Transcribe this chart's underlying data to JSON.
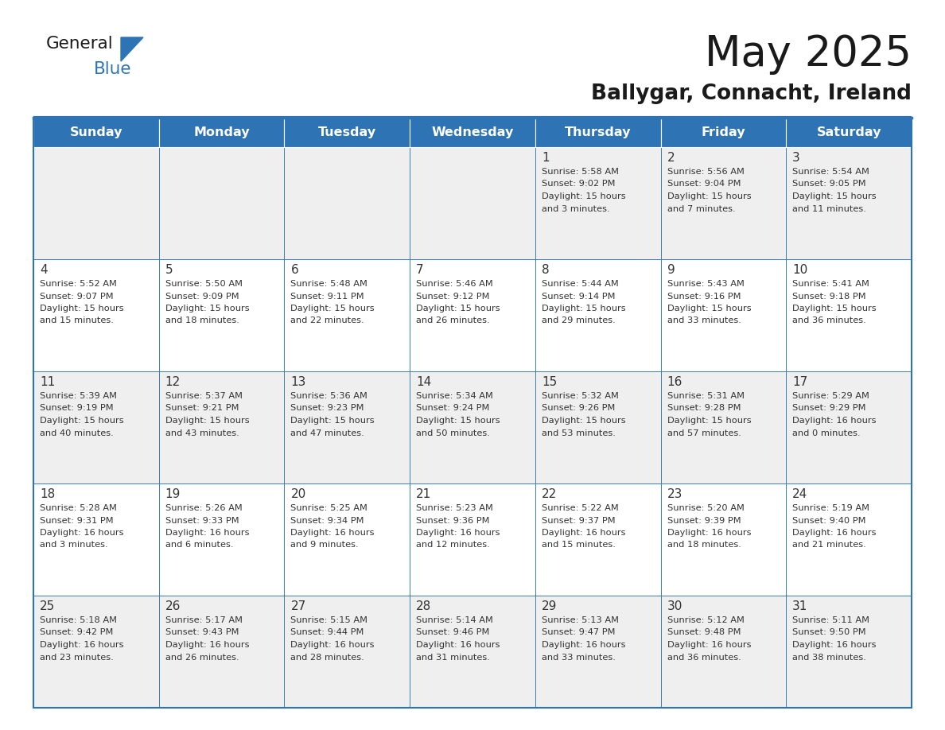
{
  "title": "May 2025",
  "subtitle": "Ballygar, Connacht, Ireland",
  "days_of_week": [
    "Sunday",
    "Monday",
    "Tuesday",
    "Wednesday",
    "Thursday",
    "Friday",
    "Saturday"
  ],
  "header_bg": "#2E74B5",
  "header_text": "#FFFFFF",
  "cell_bg_odd": "#EFEFEF",
  "cell_bg_even": "#FFFFFF",
  "border_color": "#2E74B5",
  "text_color": "#333333",
  "title_color": "#1a1a1a",
  "subtitle_color": "#1a1a1a",
  "logo_general_color": "#1a1a1a",
  "logo_blue_color": "#2E74B5",
  "logo_triangle_color": "#2E74B5",
  "calendar": [
    [
      {
        "day": null,
        "info": null
      },
      {
        "day": null,
        "info": null
      },
      {
        "day": null,
        "info": null
      },
      {
        "day": null,
        "info": null
      },
      {
        "day": 1,
        "info": "Sunrise: 5:58 AM\nSunset: 9:02 PM\nDaylight: 15 hours\nand 3 minutes."
      },
      {
        "day": 2,
        "info": "Sunrise: 5:56 AM\nSunset: 9:04 PM\nDaylight: 15 hours\nand 7 minutes."
      },
      {
        "day": 3,
        "info": "Sunrise: 5:54 AM\nSunset: 9:05 PM\nDaylight: 15 hours\nand 11 minutes."
      }
    ],
    [
      {
        "day": 4,
        "info": "Sunrise: 5:52 AM\nSunset: 9:07 PM\nDaylight: 15 hours\nand 15 minutes."
      },
      {
        "day": 5,
        "info": "Sunrise: 5:50 AM\nSunset: 9:09 PM\nDaylight: 15 hours\nand 18 minutes."
      },
      {
        "day": 6,
        "info": "Sunrise: 5:48 AM\nSunset: 9:11 PM\nDaylight: 15 hours\nand 22 minutes."
      },
      {
        "day": 7,
        "info": "Sunrise: 5:46 AM\nSunset: 9:12 PM\nDaylight: 15 hours\nand 26 minutes."
      },
      {
        "day": 8,
        "info": "Sunrise: 5:44 AM\nSunset: 9:14 PM\nDaylight: 15 hours\nand 29 minutes."
      },
      {
        "day": 9,
        "info": "Sunrise: 5:43 AM\nSunset: 9:16 PM\nDaylight: 15 hours\nand 33 minutes."
      },
      {
        "day": 10,
        "info": "Sunrise: 5:41 AM\nSunset: 9:18 PM\nDaylight: 15 hours\nand 36 minutes."
      }
    ],
    [
      {
        "day": 11,
        "info": "Sunrise: 5:39 AM\nSunset: 9:19 PM\nDaylight: 15 hours\nand 40 minutes."
      },
      {
        "day": 12,
        "info": "Sunrise: 5:37 AM\nSunset: 9:21 PM\nDaylight: 15 hours\nand 43 minutes."
      },
      {
        "day": 13,
        "info": "Sunrise: 5:36 AM\nSunset: 9:23 PM\nDaylight: 15 hours\nand 47 minutes."
      },
      {
        "day": 14,
        "info": "Sunrise: 5:34 AM\nSunset: 9:24 PM\nDaylight: 15 hours\nand 50 minutes."
      },
      {
        "day": 15,
        "info": "Sunrise: 5:32 AM\nSunset: 9:26 PM\nDaylight: 15 hours\nand 53 minutes."
      },
      {
        "day": 16,
        "info": "Sunrise: 5:31 AM\nSunset: 9:28 PM\nDaylight: 15 hours\nand 57 minutes."
      },
      {
        "day": 17,
        "info": "Sunrise: 5:29 AM\nSunset: 9:29 PM\nDaylight: 16 hours\nand 0 minutes."
      }
    ],
    [
      {
        "day": 18,
        "info": "Sunrise: 5:28 AM\nSunset: 9:31 PM\nDaylight: 16 hours\nand 3 minutes."
      },
      {
        "day": 19,
        "info": "Sunrise: 5:26 AM\nSunset: 9:33 PM\nDaylight: 16 hours\nand 6 minutes."
      },
      {
        "day": 20,
        "info": "Sunrise: 5:25 AM\nSunset: 9:34 PM\nDaylight: 16 hours\nand 9 minutes."
      },
      {
        "day": 21,
        "info": "Sunrise: 5:23 AM\nSunset: 9:36 PM\nDaylight: 16 hours\nand 12 minutes."
      },
      {
        "day": 22,
        "info": "Sunrise: 5:22 AM\nSunset: 9:37 PM\nDaylight: 16 hours\nand 15 minutes."
      },
      {
        "day": 23,
        "info": "Sunrise: 5:20 AM\nSunset: 9:39 PM\nDaylight: 16 hours\nand 18 minutes."
      },
      {
        "day": 24,
        "info": "Sunrise: 5:19 AM\nSunset: 9:40 PM\nDaylight: 16 hours\nand 21 minutes."
      }
    ],
    [
      {
        "day": 25,
        "info": "Sunrise: 5:18 AM\nSunset: 9:42 PM\nDaylight: 16 hours\nand 23 minutes."
      },
      {
        "day": 26,
        "info": "Sunrise: 5:17 AM\nSunset: 9:43 PM\nDaylight: 16 hours\nand 26 minutes."
      },
      {
        "day": 27,
        "info": "Sunrise: 5:15 AM\nSunset: 9:44 PM\nDaylight: 16 hours\nand 28 minutes."
      },
      {
        "day": 28,
        "info": "Sunrise: 5:14 AM\nSunset: 9:46 PM\nDaylight: 16 hours\nand 31 minutes."
      },
      {
        "day": 29,
        "info": "Sunrise: 5:13 AM\nSunset: 9:47 PM\nDaylight: 16 hours\nand 33 minutes."
      },
      {
        "day": 30,
        "info": "Sunrise: 5:12 AM\nSunset: 9:48 PM\nDaylight: 16 hours\nand 36 minutes."
      },
      {
        "day": 31,
        "info": "Sunrise: 5:11 AM\nSunset: 9:50 PM\nDaylight: 16 hours\nand 38 minutes."
      }
    ]
  ]
}
